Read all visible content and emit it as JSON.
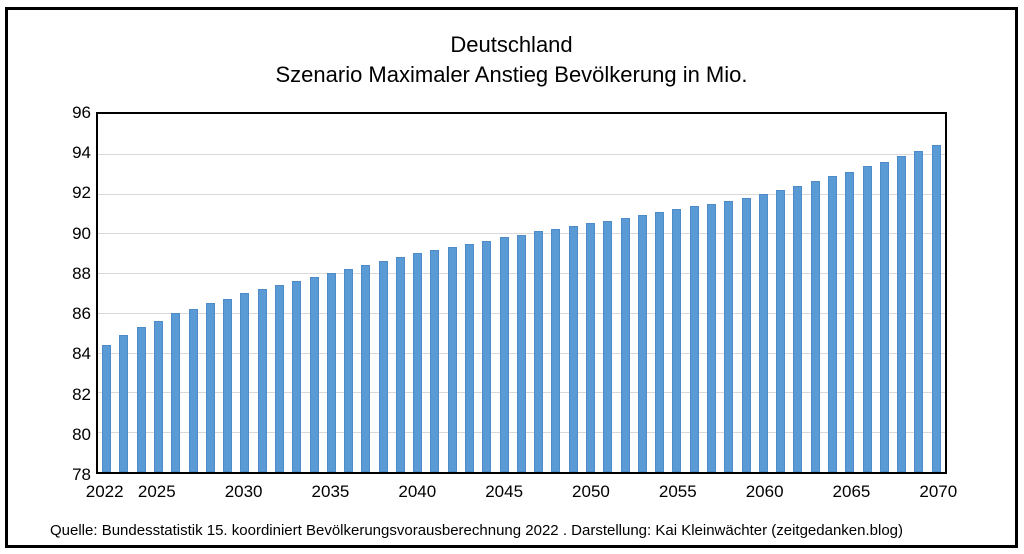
{
  "title": {
    "line1": "Deutschland",
    "line2": "Szenario Maximaler Anstieg Bevölkerung in Mio."
  },
  "footer": {
    "source": "Quelle: Bundesstatistik 15. koordiniert Bevölkerungsvorausberechnung 2022 . Darstellung: Kai Kleinwächter (zeitgedanken.blog)"
  },
  "colors": {
    "bar_fill": "#5b9bd5",
    "bar_edge": "#4f8cc7",
    "gridline": "#d9d9d9",
    "frame": "#000000"
  },
  "chart_data": {
    "type": "bar",
    "title": "Deutschland — Szenario Maximaler Anstieg Bevölkerung in Mio.",
    "xlabel": "",
    "ylabel": "",
    "ylim": [
      78,
      96
    ],
    "y_ticks": [
      96,
      94,
      92,
      90,
      88,
      86,
      84,
      82,
      80,
      78
    ],
    "grid": true,
    "legend": false,
    "x": [
      2022,
      2023,
      2024,
      2025,
      2026,
      2027,
      2028,
      2029,
      2030,
      2031,
      2032,
      2033,
      2034,
      2035,
      2036,
      2037,
      2038,
      2039,
      2040,
      2041,
      2042,
      2043,
      2044,
      2045,
      2046,
      2047,
      2048,
      2049,
      2050,
      2051,
      2052,
      2053,
      2054,
      2055,
      2056,
      2057,
      2058,
      2059,
      2060,
      2061,
      2062,
      2063,
      2064,
      2065,
      2066,
      2067,
      2068,
      2069,
      2070
    ],
    "values": [
      84.4,
      84.9,
      85.3,
      85.6,
      86.0,
      86.2,
      86.5,
      86.7,
      87.0,
      87.2,
      87.4,
      87.6,
      87.8,
      88.0,
      88.2,
      88.4,
      88.6,
      88.8,
      89.0,
      89.15,
      89.3,
      89.45,
      89.6,
      89.8,
      89.9,
      90.1,
      90.2,
      90.35,
      90.5,
      90.6,
      90.75,
      90.9,
      91.05,
      91.2,
      91.35,
      91.5,
      91.65,
      91.8,
      92.0,
      92.2,
      92.4,
      92.65,
      92.9,
      93.1,
      93.4,
      93.6,
      93.9,
      94.15,
      94.45
    ],
    "x_tick_labels": [
      {
        "label": "2022",
        "index": 0
      },
      {
        "label": "2025",
        "index": 3
      },
      {
        "label": "2030",
        "index": 8
      },
      {
        "label": "2035",
        "index": 13
      },
      {
        "label": "2040",
        "index": 18
      },
      {
        "label": "2045",
        "index": 23
      },
      {
        "label": "2050",
        "index": 28
      },
      {
        "label": "2055",
        "index": 33
      },
      {
        "label": "2060",
        "index": 38
      },
      {
        "label": "2065",
        "index": 43
      },
      {
        "label": "2070",
        "index": 48
      }
    ]
  }
}
